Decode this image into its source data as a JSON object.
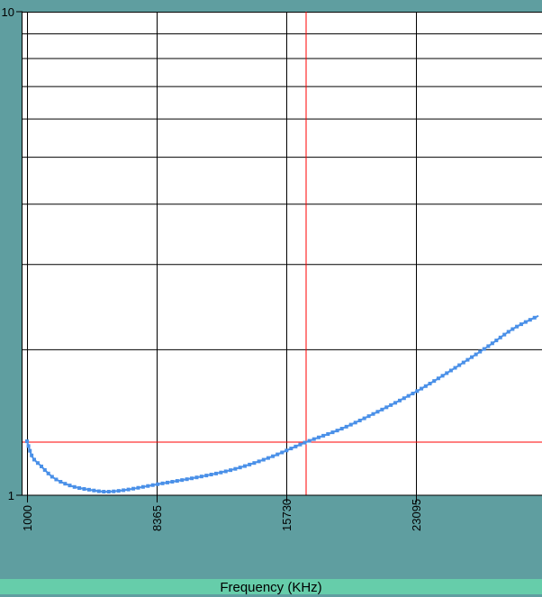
{
  "chart_data": {
    "type": "line",
    "xlabel": "Frequency (KHz)",
    "ylabel": "",
    "y_scale": "log",
    "xlim": [
      1000,
      30200
    ],
    "ylim": [
      1,
      10
    ],
    "x_ticks": [
      "1000",
      "8365",
      "15730",
      "23095"
    ],
    "y_ticks": [
      "1",
      "10"
    ],
    "grid": true,
    "x": [
      1000,
      1307,
      1768,
      2534,
      3557,
      4580,
      5500,
      6626,
      8365,
      10718,
      12764,
      14809,
      16855,
      18901,
      20947,
      23095,
      25039,
      27085,
      28620,
      30052
    ],
    "y": [
      1.293,
      1.2,
      1.152,
      1.085,
      1.044,
      1.026,
      1.017,
      1.026,
      1.053,
      1.09,
      1.132,
      1.198,
      1.288,
      1.374,
      1.49,
      1.637,
      1.807,
      2.02,
      2.21,
      2.35
    ],
    "cursor": {
      "x": 16855,
      "y": 1.288
    },
    "colors": {
      "series": "#4A90E8",
      "cursor": "#FF0000",
      "background": "#5F9EA0",
      "footer": "#66CDAA",
      "plot": "#FFFFFF"
    }
  }
}
